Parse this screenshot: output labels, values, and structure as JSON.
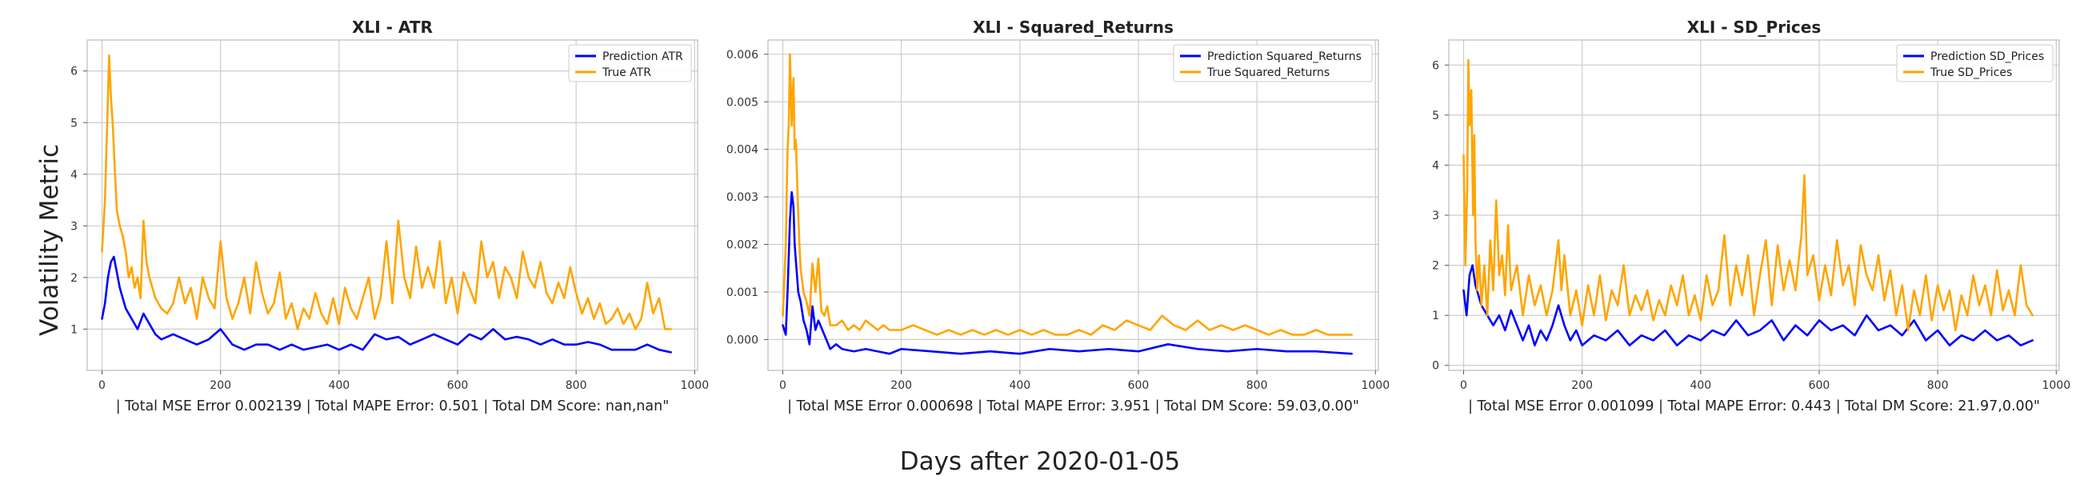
{
  "figure": {
    "ylabel": "Volatility Metric",
    "xlabel": "Days after 2020-01-05"
  },
  "colors": {
    "prediction": "#0000ff",
    "true": "#ffa500",
    "grid": "#cccccc",
    "axis": "#bbbbbb"
  },
  "chart_data": [
    {
      "type": "line",
      "title": "XLI - ATR",
      "xlabel": "| Total MSE Error 0.002139 | Total MAPE Error: 0.501 | Total DM Score: nan,nan\"",
      "ylabel": "Volatility Metric",
      "xlim": [
        -25,
        1005
      ],
      "ylim": [
        0.2,
        6.6
      ],
      "xticks": [
        0,
        200,
        400,
        600,
        800,
        1000
      ],
      "yticks": [
        1,
        2,
        3,
        4,
        5,
        6
      ],
      "ytick_labels": [
        "1",
        "2",
        "3",
        "4",
        "5",
        "6"
      ],
      "legend_position": "top-right",
      "series": [
        {
          "name": "Prediction ATR",
          "color_key": "prediction",
          "x": [
            0,
            5,
            10,
            15,
            20,
            25,
            30,
            40,
            50,
            60,
            70,
            80,
            90,
            100,
            120,
            140,
            160,
            180,
            200,
            220,
            240,
            260,
            280,
            300,
            320,
            340,
            360,
            380,
            400,
            420,
            440,
            460,
            480,
            500,
            520,
            540,
            560,
            580,
            600,
            620,
            640,
            660,
            680,
            700,
            720,
            740,
            760,
            780,
            800,
            820,
            840,
            860,
            880,
            900,
            920,
            940,
            960
          ],
          "y": [
            1.2,
            1.5,
            2.0,
            2.3,
            2.4,
            2.1,
            1.8,
            1.4,
            1.2,
            1.0,
            1.3,
            1.1,
            0.9,
            0.8,
            0.9,
            0.8,
            0.7,
            0.8,
            1.0,
            0.7,
            0.6,
            0.7,
            0.7,
            0.6,
            0.7,
            0.6,
            0.65,
            0.7,
            0.6,
            0.7,
            0.6,
            0.9,
            0.8,
            0.85,
            0.7,
            0.8,
            0.9,
            0.8,
            0.7,
            0.9,
            0.8,
            1.0,
            0.8,
            0.85,
            0.8,
            0.7,
            0.8,
            0.7,
            0.7,
            0.75,
            0.7,
            0.6,
            0.6,
            0.6,
            0.7,
            0.6,
            0.55
          ]
        },
        {
          "name": "True ATR",
          "color_key": "true",
          "x": [
            0,
            5,
            10,
            12,
            15,
            18,
            22,
            25,
            30,
            35,
            40,
            45,
            50,
            55,
            60,
            65,
            70,
            75,
            80,
            90,
            100,
            110,
            120,
            130,
            140,
            150,
            160,
            170,
            180,
            190,
            200,
            210,
            220,
            230,
            240,
            250,
            260,
            270,
            280,
            290,
            300,
            310,
            320,
            330,
            340,
            350,
            360,
            370,
            380,
            390,
            400,
            410,
            420,
            430,
            440,
            450,
            460,
            470,
            480,
            490,
            500,
            510,
            520,
            530,
            540,
            550,
            560,
            570,
            580,
            590,
            600,
            610,
            620,
            630,
            640,
            650,
            660,
            670,
            680,
            690,
            700,
            710,
            720,
            730,
            740,
            750,
            760,
            770,
            780,
            790,
            800,
            810,
            820,
            830,
            840,
            850,
            860,
            870,
            880,
            890,
            900,
            910,
            920,
            930,
            940,
            950,
            960
          ],
          "y": [
            2.5,
            3.5,
            5.5,
            6.3,
            5.5,
            5.0,
            4.0,
            3.3,
            3.0,
            2.8,
            2.5,
            2.0,
            2.2,
            1.8,
            2.0,
            1.6,
            3.1,
            2.3,
            2.0,
            1.6,
            1.4,
            1.3,
            1.5,
            2.0,
            1.5,
            1.8,
            1.2,
            2.0,
            1.6,
            1.4,
            2.7,
            1.6,
            1.2,
            1.5,
            2.0,
            1.3,
            2.3,
            1.7,
            1.3,
            1.5,
            2.1,
            1.2,
            1.5,
            1.0,
            1.4,
            1.2,
            1.7,
            1.3,
            1.1,
            1.6,
            1.1,
            1.8,
            1.4,
            1.2,
            1.6,
            2.0,
            1.2,
            1.6,
            2.7,
            1.5,
            3.1,
            2.0,
            1.6,
            2.6,
            1.8,
            2.2,
            1.8,
            2.7,
            1.5,
            2.0,
            1.3,
            2.1,
            1.8,
            1.5,
            2.7,
            2.0,
            2.3,
            1.6,
            2.2,
            2.0,
            1.6,
            2.5,
            2.0,
            1.8,
            2.3,
            1.7,
            1.5,
            1.9,
            1.6,
            2.2,
            1.7,
            1.3,
            1.6,
            1.2,
            1.5,
            1.1,
            1.2,
            1.4,
            1.1,
            1.3,
            1.0,
            1.2,
            1.9,
            1.3,
            1.6,
            1.0,
            1.0
          ]
        }
      ]
    },
    {
      "type": "line",
      "title": "XLI - Squared_Returns",
      "xlabel": "| Total MSE Error 0.000698 | Total MAPE Error: 3.951 | Total DM Score: 59.03,0.00\"",
      "ylabel": "",
      "xlim": [
        -25,
        1005
      ],
      "ylim": [
        -0.00065,
        0.0063
      ],
      "xticks": [
        0,
        200,
        400,
        600,
        800,
        1000
      ],
      "yticks": [
        0.0,
        0.001,
        0.002,
        0.003,
        0.004,
        0.005,
        0.006
      ],
      "ytick_labels": [
        "0.000",
        "0.001",
        "0.002",
        "0.003",
        "0.004",
        "0.005",
        "0.006"
      ],
      "legend_position": "top-right",
      "series": [
        {
          "name": "Prediction Squared_Returns",
          "color_key": "prediction",
          "x": [
            0,
            5,
            8,
            12,
            15,
            18,
            20,
            23,
            26,
            30,
            35,
            40,
            45,
            50,
            55,
            60,
            70,
            80,
            90,
            100,
            120,
            140,
            160,
            180,
            200,
            250,
            300,
            350,
            400,
            450,
            500,
            550,
            600,
            650,
            700,
            750,
            800,
            850,
            900,
            960
          ],
          "y": [
            0.0003,
            0.0001,
            0.001,
            0.0025,
            0.0031,
            0.0028,
            0.002,
            0.0015,
            0.001,
            0.0008,
            0.0004,
            0.0002,
            -0.0001,
            0.0007,
            0.0002,
            0.0004,
            0.0001,
            -0.0002,
            -0.0001,
            -0.0002,
            -0.00025,
            -0.0002,
            -0.00025,
            -0.0003,
            -0.0002,
            -0.00025,
            -0.0003,
            -0.00025,
            -0.0003,
            -0.0002,
            -0.00025,
            -0.0002,
            -0.00025,
            -0.0001,
            -0.0002,
            -0.00025,
            -0.0002,
            -0.00025,
            -0.00025,
            -0.0003
          ]
        },
        {
          "name": "True Squared_Returns",
          "color_key": "true",
          "x": [
            0,
            5,
            8,
            10,
            12,
            15,
            18,
            20,
            22,
            25,
            28,
            30,
            35,
            40,
            45,
            50,
            55,
            60,
            65,
            70,
            75,
            80,
            90,
            100,
            110,
            120,
            130,
            140,
            150,
            160,
            170,
            180,
            200,
            220,
            240,
            260,
            280,
            300,
            320,
            340,
            360,
            380,
            400,
            420,
            440,
            460,
            480,
            500,
            520,
            540,
            560,
            580,
            600,
            620,
            640,
            660,
            680,
            700,
            720,
            740,
            760,
            780,
            800,
            820,
            840,
            860,
            880,
            900,
            920,
            940,
            960
          ],
          "y": [
            0.0005,
            0.002,
            0.004,
            0.0045,
            0.006,
            0.0045,
            0.0055,
            0.004,
            0.0042,
            0.003,
            0.002,
            0.0015,
            0.001,
            0.0008,
            0.0005,
            0.0016,
            0.001,
            0.0017,
            0.0006,
            0.0005,
            0.0007,
            0.0003,
            0.0003,
            0.0004,
            0.0002,
            0.0003,
            0.0002,
            0.0004,
            0.0003,
            0.0002,
            0.0003,
            0.0002,
            0.0002,
            0.0003,
            0.0002,
            0.0001,
            0.0002,
            0.0001,
            0.0002,
            0.0001,
            0.0002,
            0.0001,
            0.0002,
            0.0001,
            0.0002,
            0.0001,
            0.0001,
            0.0002,
            0.0001,
            0.0003,
            0.0002,
            0.0004,
            0.0003,
            0.0002,
            0.0005,
            0.0003,
            0.0002,
            0.0004,
            0.0002,
            0.0003,
            0.0002,
            0.0003,
            0.0002,
            0.0001,
            0.0002,
            0.0001,
            0.0001,
            0.0002,
            0.0001,
            0.0001,
            0.0001
          ]
        }
      ]
    },
    {
      "type": "line",
      "title": "XLI - SD_Prices",
      "xlabel": "| Total MSE Error 0.001099 | Total MAPE Error: 0.443 | Total DM Score: 21.97,0.00\"",
      "ylabel": "",
      "xlim": [
        -25,
        1005
      ],
      "ylim": [
        -0.1,
        6.5
      ],
      "xticks": [
        0,
        200,
        400,
        600,
        800,
        1000
      ],
      "yticks": [
        0,
        1,
        2,
        3,
        4,
        5,
        6
      ],
      "ytick_labels": [
        "0",
        "1",
        "2",
        "3",
        "4",
        "5",
        "6"
      ],
      "legend_position": "top-right",
      "series": [
        {
          "name": "Prediction SD_Prices",
          "color_key": "prediction",
          "x": [
            0,
            5,
            10,
            15,
            20,
            25,
            30,
            40,
            50,
            60,
            70,
            80,
            90,
            100,
            110,
            120,
            130,
            140,
            150,
            160,
            170,
            180,
            190,
            200,
            220,
            240,
            260,
            280,
            300,
            320,
            340,
            360,
            380,
            400,
            420,
            440,
            460,
            480,
            500,
            520,
            540,
            560,
            580,
            600,
            620,
            640,
            660,
            680,
            700,
            720,
            740,
            760,
            780,
            800,
            820,
            840,
            860,
            880,
            900,
            920,
            940,
            960
          ],
          "y": [
            1.5,
            1.0,
            1.8,
            2.0,
            1.6,
            1.4,
            1.2,
            1.0,
            0.8,
            1.0,
            0.7,
            1.1,
            0.8,
            0.5,
            0.8,
            0.4,
            0.7,
            0.5,
            0.8,
            1.2,
            0.8,
            0.5,
            0.7,
            0.4,
            0.6,
            0.5,
            0.7,
            0.4,
            0.6,
            0.5,
            0.7,
            0.4,
            0.6,
            0.5,
            0.7,
            0.6,
            0.9,
            0.6,
            0.7,
            0.9,
            0.5,
            0.8,
            0.6,
            0.9,
            0.7,
            0.8,
            0.6,
            1.0,
            0.7,
            0.8,
            0.6,
            0.9,
            0.5,
            0.7,
            0.4,
            0.6,
            0.5,
            0.7,
            0.5,
            0.6,
            0.4,
            0.5
          ]
        },
        {
          "name": "True SD_Prices",
          "color_key": "true",
          "x": [
            0,
            3,
            6,
            8,
            10,
            13,
            16,
            18,
            20,
            23,
            26,
            30,
            35,
            40,
            45,
            50,
            55,
            60,
            65,
            70,
            75,
            80,
            90,
            100,
            110,
            120,
            130,
            140,
            150,
            160,
            165,
            170,
            180,
            190,
            200,
            210,
            220,
            230,
            240,
            250,
            260,
            270,
            280,
            290,
            300,
            310,
            320,
            330,
            340,
            350,
            360,
            370,
            380,
            390,
            400,
            410,
            420,
            430,
            440,
            450,
            460,
            470,
            480,
            490,
            500,
            510,
            520,
            530,
            540,
            550,
            560,
            570,
            575,
            580,
            590,
            600,
            610,
            620,
            630,
            640,
            650,
            660,
            670,
            680,
            690,
            700,
            710,
            720,
            730,
            740,
            750,
            760,
            770,
            780,
            790,
            800,
            810,
            820,
            830,
            840,
            850,
            860,
            870,
            880,
            890,
            900,
            910,
            920,
            930,
            940,
            950,
            960
          ],
          "y": [
            4.2,
            2.0,
            3.5,
            6.1,
            4.8,
            5.5,
            3.0,
            4.6,
            2.5,
            1.5,
            2.2,
            1.2,
            2.0,
            1.0,
            2.5,
            1.5,
            3.3,
            1.8,
            2.2,
            1.4,
            2.8,
            1.5,
            2.0,
            1.0,
            1.8,
            1.2,
            1.6,
            1.0,
            1.5,
            2.5,
            1.5,
            2.2,
            1.0,
            1.5,
            0.8,
            1.6,
            1.0,
            1.8,
            0.9,
            1.5,
            1.2,
            2.0,
            1.0,
            1.4,
            1.1,
            1.5,
            0.9,
            1.3,
            1.0,
            1.6,
            1.2,
            1.8,
            1.0,
            1.4,
            0.9,
            1.8,
            1.2,
            1.5,
            2.6,
            1.2,
            2.0,
            1.4,
            2.2,
            1.0,
            1.8,
            2.5,
            1.2,
            2.4,
            1.5,
            2.1,
            1.5,
            2.6,
            3.8,
            1.8,
            2.2,
            1.3,
            2.0,
            1.4,
            2.5,
            1.6,
            2.0,
            1.2,
            2.4,
            1.8,
            1.5,
            2.2,
            1.3,
            1.9,
            1.0,
            1.6,
            0.7,
            1.5,
            1.0,
            1.8,
            0.9,
            1.6,
            1.1,
            1.5,
            0.7,
            1.4,
            1.0,
            1.8,
            1.2,
            1.6,
            1.0,
            1.9,
            1.1,
            1.5,
            1.0,
            2.0,
            1.2,
            1.0
          ]
        }
      ]
    }
  ]
}
